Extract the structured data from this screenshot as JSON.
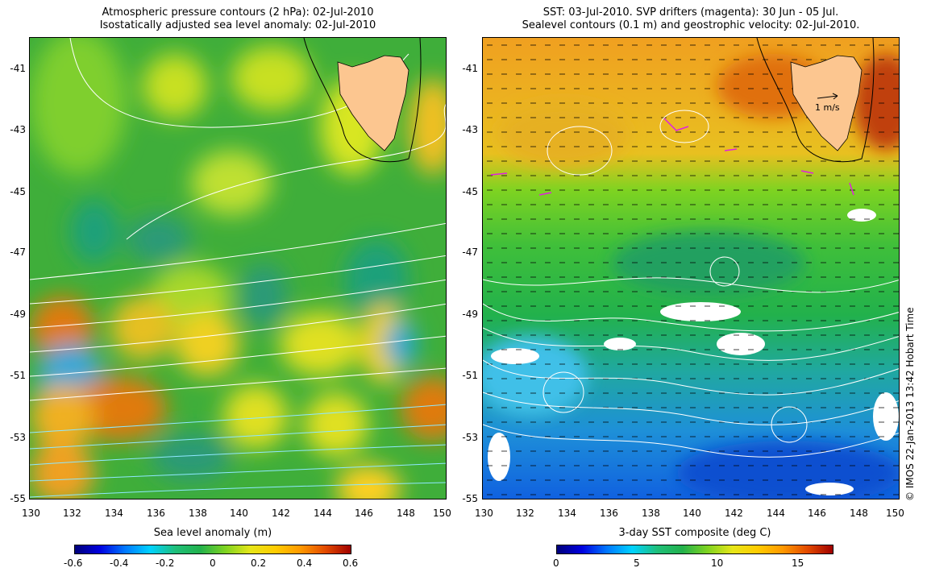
{
  "left_panel": {
    "title_line1": "Atmospheric pressure contours (2 hPa): 02-Jul-2010",
    "title_line2": "Isostatically adjusted sea level anomaly: 02-Jul-2010",
    "colorbar": {
      "label": "Sea level anomaly (m)",
      "ticks": [
        "-0.6",
        "-0.4",
        "-0.2",
        "0",
        "0.2",
        "0.4",
        "0.6"
      ],
      "colors": [
        "#00007a",
        "#0000e0",
        "#0078ff",
        "#00d2ff",
        "#1fbf7a",
        "#22b14c",
        "#7ed321",
        "#e6e619",
        "#ffcc00",
        "#ff9900",
        "#e34a00",
        "#a00000"
      ]
    }
  },
  "right_panel": {
    "title_line1": "SST: 03-Jul-2010. SVP drifters (magenta): 30 Jun - 05 Jul.",
    "title_line2": "Sealevel contours (0.1 m) and geostrophic velocity: 02-Jul-2010.",
    "velocity_scale_label": "1 m/s",
    "colorbar": {
      "label": "3-day SST composite (deg C)",
      "ticks": [
        "0",
        "5",
        "10",
        "15"
      ],
      "colors": [
        "#00007a",
        "#0000e0",
        "#0078ff",
        "#00d2ff",
        "#1fbf7a",
        "#22b14c",
        "#7ed321",
        "#e6e619",
        "#ffcc00",
        "#ff9900",
        "#e34a00",
        "#a00000"
      ]
    }
  },
  "axes": {
    "lon_ticks": [
      "130",
      "132",
      "134",
      "136",
      "138",
      "140",
      "142",
      "144",
      "146",
      "148",
      "150"
    ],
    "lat_ticks": [
      "-41",
      "-43",
      "-45",
      "-47",
      "-49",
      "-51",
      "-53",
      "-55"
    ]
  },
  "credit": "© IMOS 22-Jan-2013 13:42 Hobart Time",
  "colors": {
    "land": "#fcc690",
    "contour": "#ffffff",
    "drifter": "#e020e0"
  }
}
